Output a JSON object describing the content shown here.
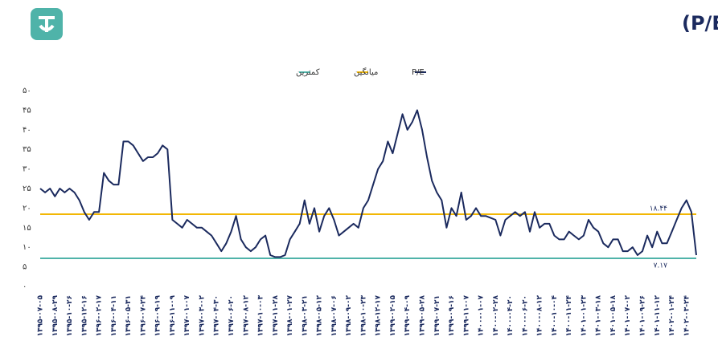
{
  "chart_data": {
    "type": "line",
    "title": "تاریخچه نسبت قیمت به درآمد (P/E)",
    "categories": [
      "۱۳۹۵-۰۷-۰۵",
      null,
      null,
      "۱۳۹۵-۰۸-۲۹",
      null,
      null,
      "۱۳۹۵-۱۰-۲۶",
      null,
      null,
      "۱۳۹۵-۱۲-۱۶",
      null,
      null,
      "۱۳۹۶-۰۲-۱۷",
      null,
      null,
      "۱۳۹۶-۰۴-۱۱",
      null,
      null,
      "۱۳۹۶-۰۵-۳۱",
      null,
      null,
      "۱۳۹۶-۰۷-۲۴",
      null,
      null,
      "۱۳۹۶-۰۹-۱۹",
      null,
      null,
      "۱۳۹۶-۱۱-۰۹",
      null,
      null,
      "۱۳۹۷-۰۱-۰۷",
      null,
      null,
      "۱۳۹۷-۰۳-۰۲",
      null,
      null,
      "۱۳۹۷-۰۴-۳۰",
      null,
      null,
      "۱۳۹۷-۰۶-۲۰",
      null,
      null,
      "۱۳۹۷-۰۸-۱۲",
      null,
      null,
      "۱۳۹۷-۱۰-۰۳",
      null,
      null,
      "۱۳۹۷-۱۱-۲۸",
      null,
      null,
      "۱۳۹۸-۰۱-۲۷",
      null,
      null,
      "۱۳۹۸-۰۳-۲۱",
      null,
      null,
      "۱۳۹۸-۰۵-۱۲",
      null,
      null,
      "۱۳۹۸-۰۷-۰۶",
      null,
      null,
      "۱۳۹۸-۰۹-۰۲",
      null,
      null,
      "۱۳۹۸-۱۰-۲۳",
      null,
      null,
      "۱۳۹۸-۱۲-۱۷",
      null,
      null,
      "۱۳۹۹-۰۲-۱۵",
      null,
      null,
      "۱۳۹۹-۰۴-۰۹",
      null,
      null,
      "۱۳۹۹-۰۵-۲۸",
      null,
      null,
      "۱۳۹۹-۰۷-۲۱",
      null,
      null,
      "۱۳۹۹-۰۹-۱۶",
      null,
      null,
      "۱۳۹۹-۱۱-۰۷",
      null,
      null,
      "۱۴۰۰-۰۱-۰۷",
      null,
      null,
      "۱۴۰۰-۰۲-۲۸",
      null,
      null,
      "۱۴۰۰-۰۴-۲۰",
      null,
      null,
      "۱۴۰۰-۰۶-۲۰",
      null,
      null,
      "۱۴۰۰-۰۸-۱۲",
      null,
      null,
      "۱۴۰۰-۱۰-۰۴",
      null,
      null,
      "۱۴۰۰-۱۱-۲۴",
      null,
      null,
      "۱۴۰۱-۰۱-۲۳",
      null,
      null,
      "۱۴۰۱-۰۳-۱۸",
      null,
      null,
      "۱۴۰۱-۰۵-۱۸",
      null,
      null,
      "۱۴۰۱-۰۷-۰۲",
      null,
      null,
      "۱۴۰۱-۰۹-۲۶",
      null,
      null,
      "۱۴۰۱-۱۱-۱۲",
      null,
      null,
      "۱۴۰۲-۰۱-۲۴",
      null,
      null,
      "۱۴۰۲-۰۳-۲۴",
      null,
      null
    ],
    "series": [
      {
        "name": "P/E",
        "color": "#1b2a5e",
        "values": [
          25,
          24,
          25,
          23,
          25,
          24,
          25,
          24,
          22,
          19,
          17,
          19,
          19,
          29,
          27,
          26,
          26,
          37,
          37,
          36,
          34,
          32,
          33,
          33,
          34,
          36,
          35,
          17,
          16,
          15,
          17,
          16,
          15,
          15,
          14,
          13,
          11,
          9,
          11,
          14,
          18,
          12,
          10,
          9,
          10,
          12,
          13,
          8,
          7.5,
          7.5,
          8,
          12,
          14,
          16,
          22,
          16,
          20,
          14,
          18,
          20,
          17,
          13,
          14,
          15,
          16,
          15,
          20,
          22,
          26,
          30,
          32,
          37,
          34,
          39,
          44,
          40,
          42,
          45,
          40,
          33,
          27,
          24,
          22,
          15,
          20,
          18,
          24,
          17,
          18,
          20,
          18,
          18,
          17.5,
          17,
          13,
          17,
          18,
          19,
          18,
          19,
          14,
          19,
          15,
          16,
          16,
          13,
          12,
          12,
          14,
          13,
          12,
          13,
          17,
          15,
          14,
          11,
          10,
          12,
          12,
          9,
          9,
          10,
          8,
          9,
          13,
          10,
          14,
          11,
          11,
          14,
          17,
          20,
          22,
          19,
          8
        ]
      }
    ],
    "reference_lines": [
      {
        "name": "میانگین",
        "color": "#f2b705",
        "value": 18.44,
        "label": "۱۸.۴۴"
      },
      {
        "name": "کمترین",
        "color": "#4fb3a9",
        "value": 7.17,
        "label": "۷.۱۷"
      }
    ],
    "ylim": [
      0,
      50
    ],
    "yticks": [
      {
        "value": 0,
        "label": "۰"
      },
      {
        "value": 5,
        "label": "۵"
      },
      {
        "value": 10,
        "label": "۱۰"
      },
      {
        "value": 15,
        "label": "۱۵"
      },
      {
        "value": 20,
        "label": "۲۰"
      },
      {
        "value": 25,
        "label": "۲۵"
      },
      {
        "value": 30,
        "label": "۳۰"
      },
      {
        "value": 35,
        "label": "۳۵"
      },
      {
        "value": 40,
        "label": "۴۰"
      },
      {
        "value": 45,
        "label": "۴۵"
      },
      {
        "value": 50,
        "label": "۵۰"
      }
    ],
    "grid": false,
    "legend": "top"
  }
}
